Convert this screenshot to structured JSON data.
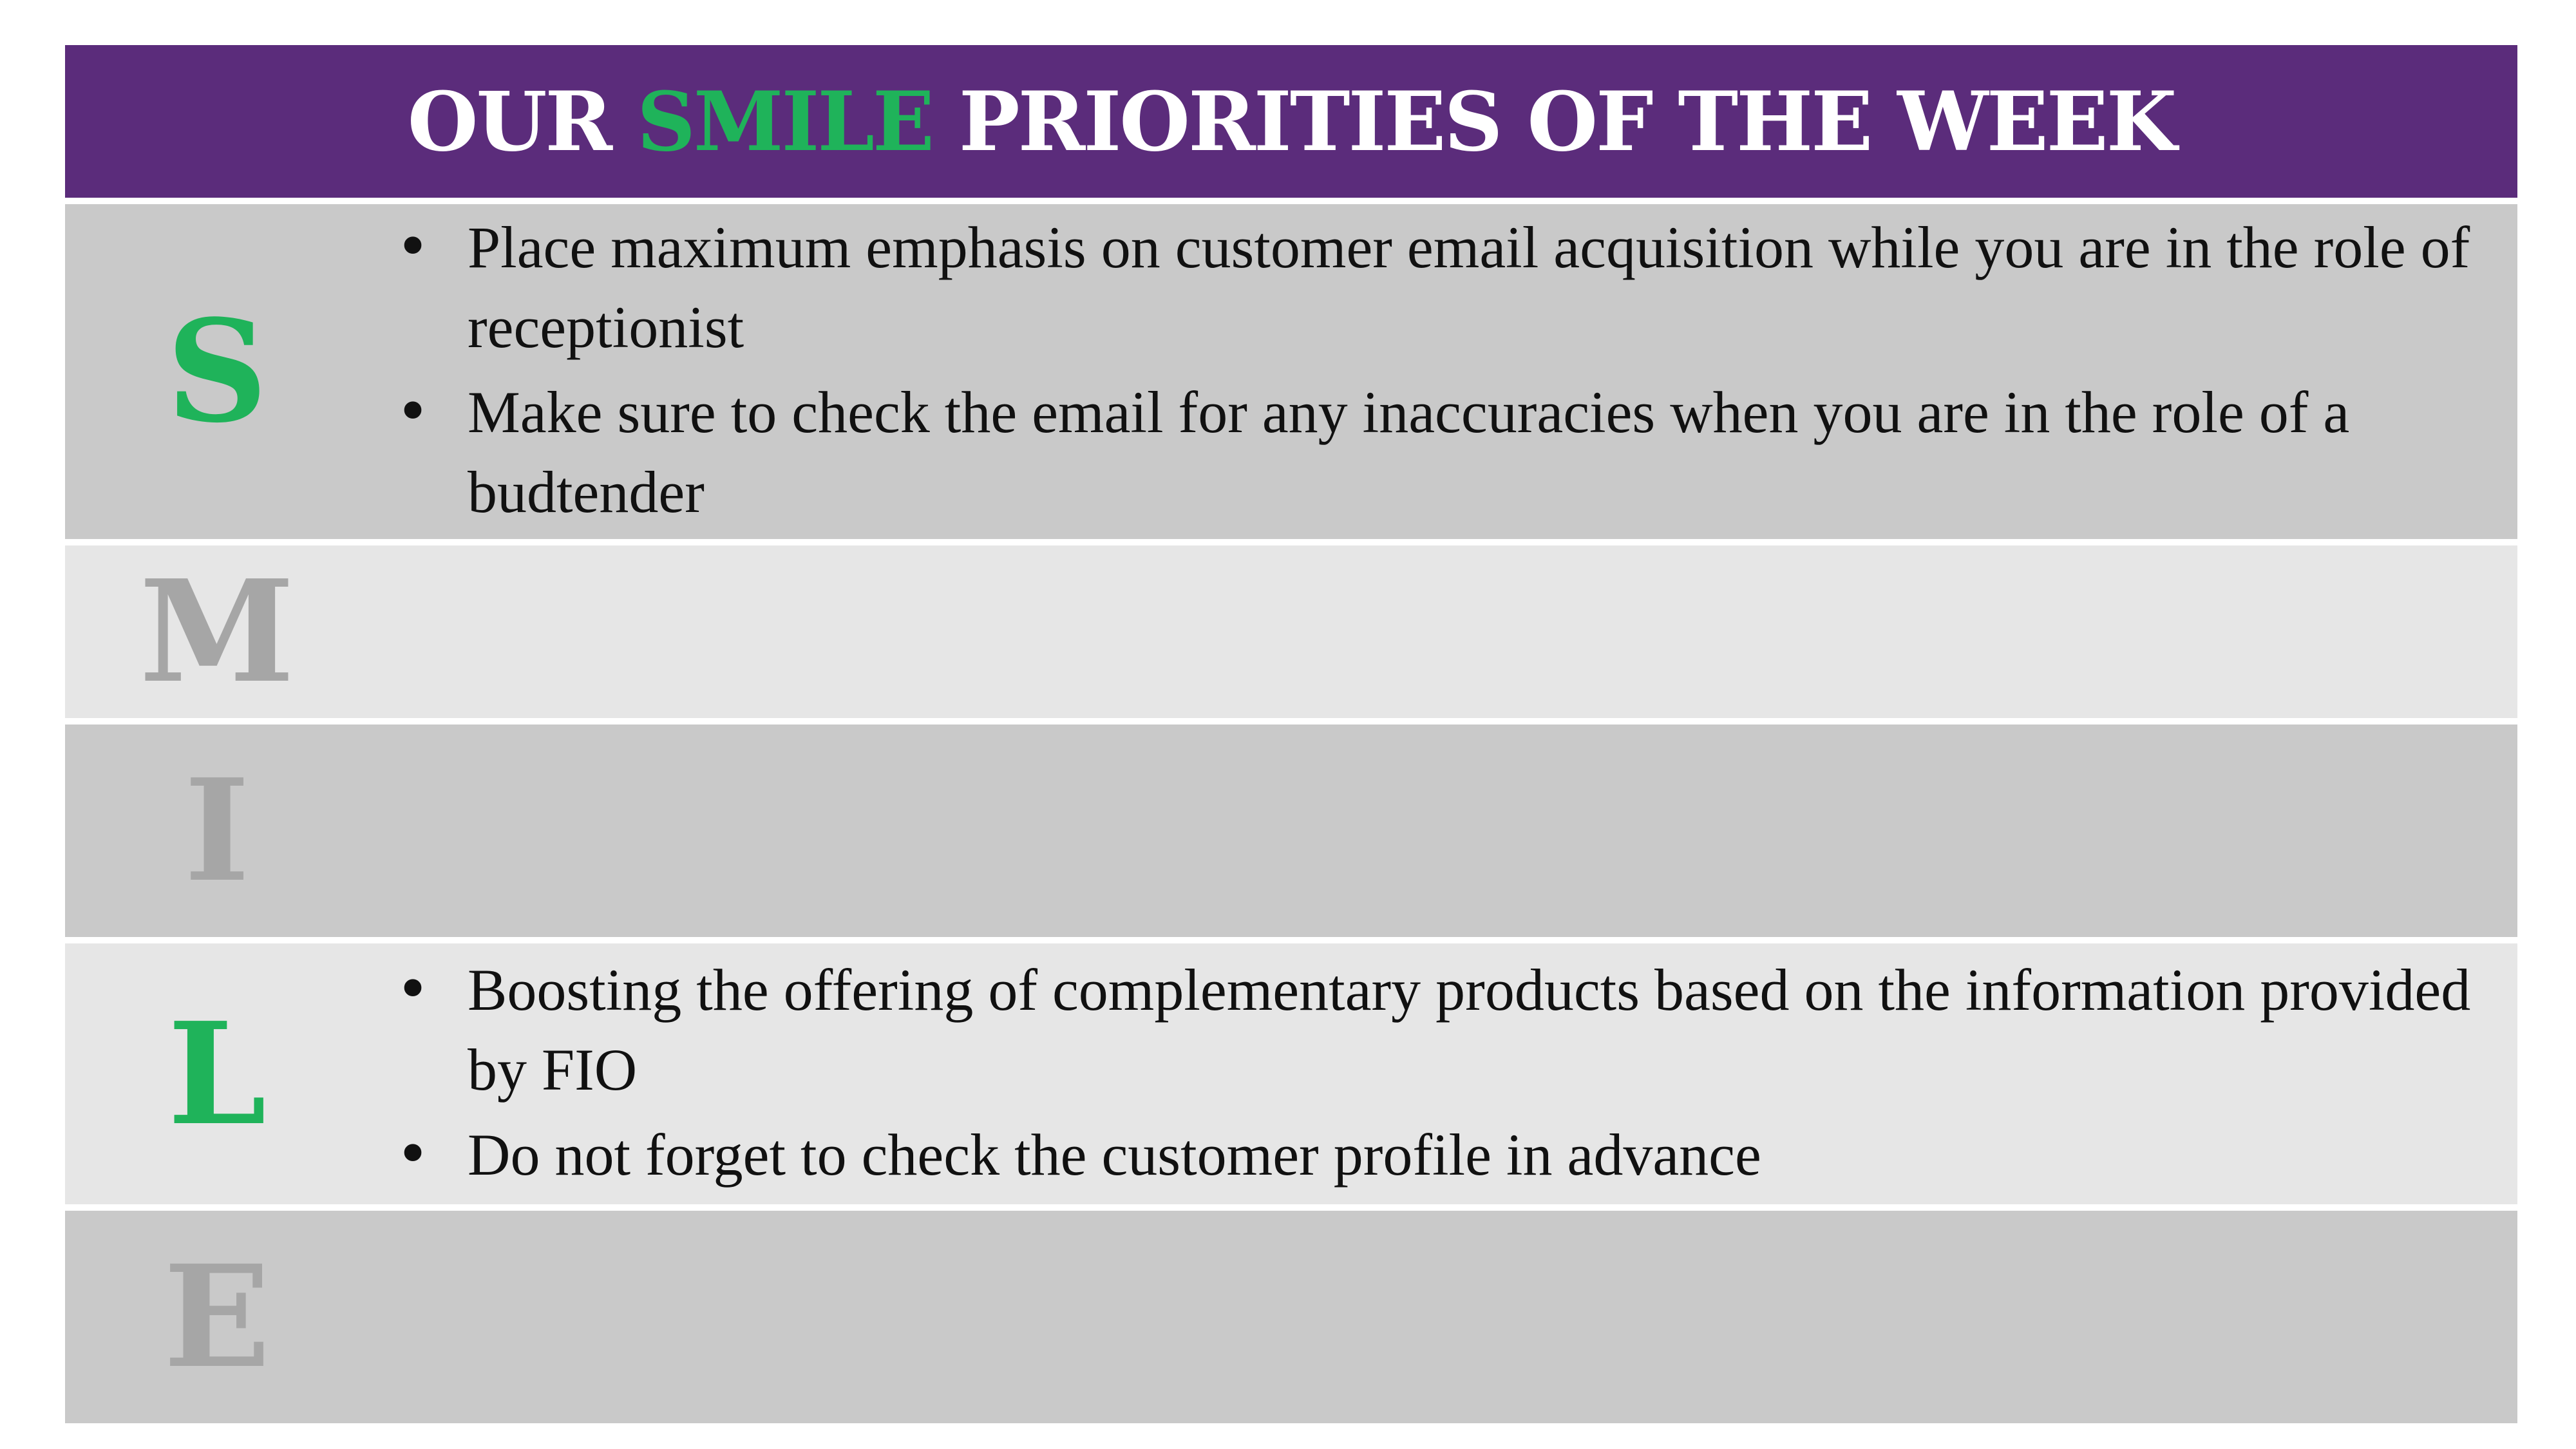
{
  "header": {
    "title_before": "OUR ",
    "title_accent": "SMILE",
    "title_after": " PRIORITIES OF THE WEEK",
    "background_color": "#5b2c7b",
    "accent_color": "#1fb35a"
  },
  "rows": [
    {
      "letter": "S",
      "letter_color": "#1fb35a",
      "bullets": [
        "Place maximum emphasis on customer email acquisition while you are in the role of receptionist",
        "Make sure to check the email for any inaccuracies when you are in the role of a budtender"
      ]
    },
    {
      "letter": "M",
      "letter_color": "#a6a6a6",
      "bullets": []
    },
    {
      "letter": "I",
      "letter_color": "#a6a6a6",
      "bullets": []
    },
    {
      "letter": "L",
      "letter_color": "#1fb35a",
      "bullets": [
        "Boosting the offering of complementary products based on the information provided by FIO",
        "Do not forget to check the customer profile in advance"
      ]
    },
    {
      "letter": "E",
      "letter_color": "#a6a6a6",
      "bullets": []
    }
  ]
}
